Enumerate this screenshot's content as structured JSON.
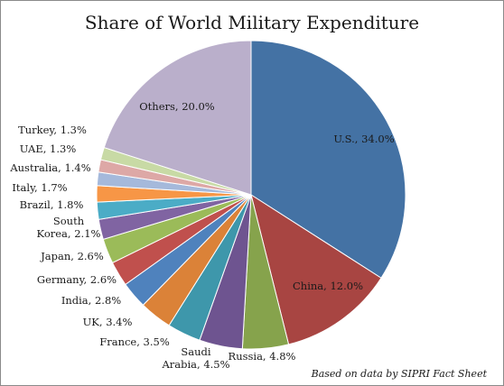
{
  "chart_data": {
    "type": "pie",
    "title": "Share of World Military Expenditure",
    "source_note": "Based on data by SIPRI Fact Sheet",
    "slices": [
      {
        "label": [
          "U.S., 34.0%"
        ],
        "value": 34.0,
        "color": "#4472A4"
      },
      {
        "label": [
          "China, 12.0%"
        ],
        "value": 12.0,
        "color": "#A84542"
      },
      {
        "label": [
          "Russia, 4.8%"
        ],
        "value": 4.8,
        "color": "#86A34C"
      },
      {
        "label": [
          "Saudi",
          "Arabia, 4.5%"
        ],
        "value": 4.5,
        "color": "#6E5490"
      },
      {
        "label": [
          "France, 3.5%"
        ],
        "value": 3.5,
        "color": "#3E97AB"
      },
      {
        "label": [
          "UK, 3.4%"
        ],
        "value": 3.4,
        "color": "#DB8238"
      },
      {
        "label": [
          "India, 2.8%"
        ],
        "value": 2.8,
        "color": "#4F82BD"
      },
      {
        "label": [
          "Germany, 2.6%"
        ],
        "value": 2.6,
        "color": "#C0504D"
      },
      {
        "label": [
          "Japan, 2.6%"
        ],
        "value": 2.6,
        "color": "#9BBB59"
      },
      {
        "label": [
          "South",
          "Korea, 2.1%"
        ],
        "value": 2.1,
        "color": "#8064A2"
      },
      {
        "label": [
          "Brazil, 1.8%"
        ],
        "value": 1.8,
        "color": "#4BACC6"
      },
      {
        "label": [
          "Italy, 1.7%"
        ],
        "value": 1.7,
        "color": "#F79646"
      },
      {
        "label": [
          "Australia, 1.4%"
        ],
        "value": 1.4,
        "color": "#A5B9DB"
      },
      {
        "label": [
          "UAE, 1.3%"
        ],
        "value": 1.3,
        "color": "#DDA8A6"
      },
      {
        "label": [
          "Turkey, 1.3%"
        ],
        "value": 1.3,
        "color": "#C8DAA5"
      },
      {
        "label": [
          "Others, 20.0%"
        ],
        "value": 20.0,
        "color": "#BAAFCB"
      }
    ]
  }
}
